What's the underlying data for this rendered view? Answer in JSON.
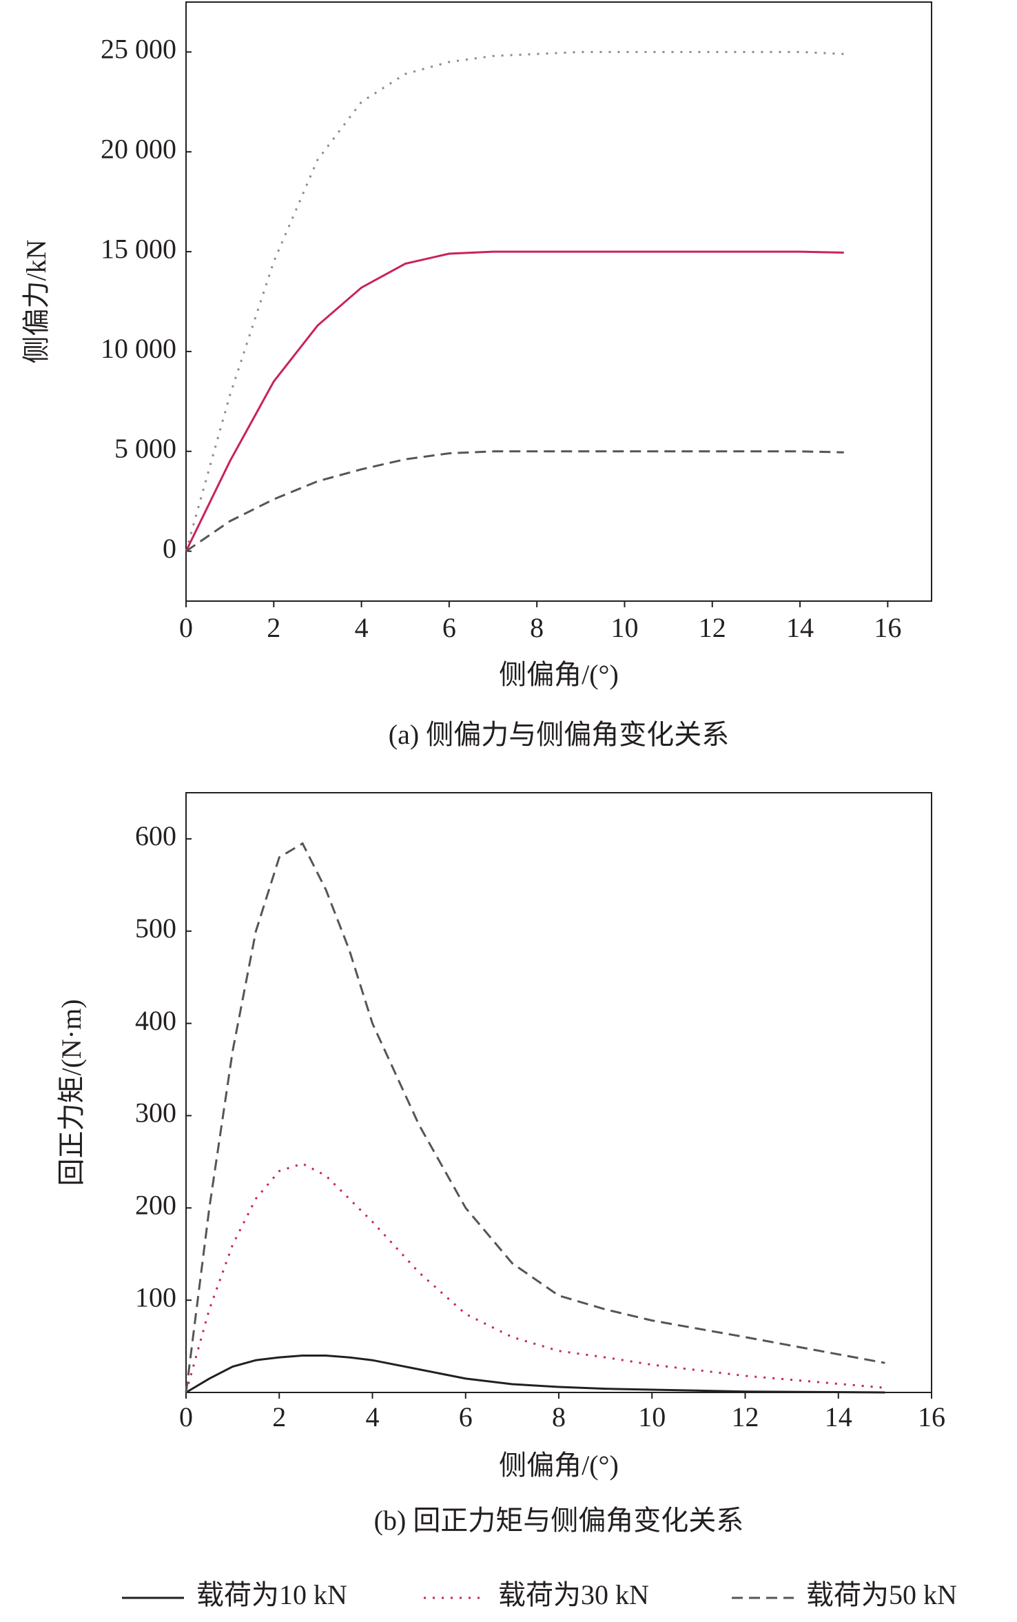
{
  "chart_data": [
    {
      "type": "line",
      "title": "(a) 侧偏力与侧偏角变化关系",
      "x_label": "侧偏角/(°)",
      "y_label": "侧偏力/kN",
      "x": [
        0,
        1,
        2,
        3,
        4,
        5,
        6,
        7,
        8,
        9,
        10,
        11,
        12,
        13,
        14,
        15
      ],
      "series": [
        {
          "color": "#8c8c8c",
          "dash": "dotted",
          "values": [
            0,
            7800,
            14500,
            19600,
            22500,
            23900,
            24500,
            24800,
            24900,
            25000,
            25000,
            25000,
            25000,
            25000,
            25000,
            24900
          ]
        },
        {
          "color": "#c8235a",
          "dash": "solid",
          "values": [
            0,
            4500,
            8500,
            11300,
            13200,
            14400,
            14900,
            15000,
            15000,
            15000,
            15000,
            15000,
            15000,
            15000,
            15000,
            14950
          ]
        },
        {
          "color": "#555555",
          "dash": "dashed",
          "values": [
            0,
            1500,
            2600,
            3500,
            4100,
            4600,
            4900,
            5000,
            5000,
            5000,
            5000,
            5000,
            5000,
            5000,
            5000,
            4950
          ]
        }
      ],
      "xlim": [
        0,
        17
      ],
      "xticks": [
        0,
        2,
        4,
        6,
        8,
        10,
        12,
        14,
        16
      ],
      "ylim": [
        -2500,
        27500
      ],
      "yticks": [
        0,
        {
          "value": 5000,
          "label": "5 000"
        },
        {
          "value": 10000,
          "label": "10 000"
        },
        {
          "value": 15000,
          "label": "15 000"
        },
        {
          "value": 20000,
          "label": "20 000"
        },
        {
          "value": 25000,
          "label": "25 000"
        }
      ]
    },
    {
      "type": "line",
      "title": "(b) 回正力矩与侧偏角变化关系",
      "x_label": "侧偏角/(°)",
      "y_label": "回正力矩/(N·m)",
      "x": [
        0,
        0.5,
        1,
        1.5,
        2,
        2.5,
        3,
        3.5,
        4,
        5,
        6,
        7,
        8,
        9,
        10,
        12,
        15
      ],
      "series": [
        {
          "name": "载荷为10 kN",
          "color": "#231f20",
          "dash": "solid",
          "values": [
            0,
            15,
            28,
            35,
            38,
            40,
            40,
            38,
            35,
            25,
            15,
            9,
            6,
            4,
            3,
            1,
            0
          ]
        },
        {
          "name": "载荷为30 kN",
          "color": "#c8235a",
          "dash": "dotted",
          "values": [
            0,
            90,
            160,
            210,
            240,
            248,
            235,
            210,
            185,
            130,
            85,
            60,
            45,
            38,
            30,
            18,
            5
          ]
        },
        {
          "name": "载荷为50 kN",
          "color": "#555555",
          "dash": "dashed",
          "values": [
            0,
            200,
            370,
            500,
            580,
            595,
            545,
            480,
            400,
            290,
            200,
            140,
            105,
            90,
            78,
            60,
            32
          ]
        }
      ],
      "xlim": [
        0,
        16
      ],
      "xticks": [
        0,
        2,
        4,
        6,
        8,
        10,
        12,
        14,
        16
      ],
      "ylim": [
        0,
        650
      ],
      "yticks": [
        100,
        200,
        300,
        400,
        500,
        600
      ],
      "legend": "bottom"
    }
  ]
}
